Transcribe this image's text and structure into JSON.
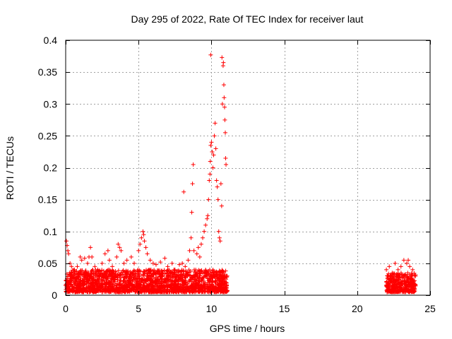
{
  "chart_data": {
    "type": "scatter",
    "title": "Day 295 of 2022, Rate Of TEC Index for receiver laut",
    "xlabel": "GPS time / hours",
    "ylabel": "ROTI / TECUs",
    "xlim": [
      0,
      25
    ],
    "ylim": [
      0,
      0.4
    ],
    "xticks": [
      0,
      5,
      10,
      15,
      20,
      25
    ],
    "yticks": [
      0,
      0.05,
      0.1,
      0.15,
      0.2,
      0.25,
      0.3,
      0.35,
      0.4
    ],
    "xtick_labels": [
      "0",
      "5",
      "10",
      "15",
      "20",
      "25"
    ],
    "ytick_labels": [
      "0",
      "0.05",
      "0.1",
      "0.15",
      "0.2",
      "0.25",
      "0.3",
      "0.35",
      "0.4"
    ],
    "grid": true,
    "marker": "+",
    "marker_color": "#ff0000",
    "series": [
      {
        "name": "ROTI",
        "points": [
          [
            0.05,
            0.085
          ],
          [
            0.1,
            0.078
          ],
          [
            0.15,
            0.07
          ],
          [
            0.2,
            0.065
          ],
          [
            0.3,
            0.05
          ],
          [
            0.4,
            0.045
          ],
          [
            0.6,
            0.04
          ],
          [
            0.8,
            0.045
          ],
          [
            1.0,
            0.06
          ],
          [
            1.1,
            0.055
          ],
          [
            1.3,
            0.058
          ],
          [
            1.5,
            0.05
          ],
          [
            1.6,
            0.06
          ],
          [
            1.7,
            0.075
          ],
          [
            1.8,
            0.06
          ],
          [
            2.0,
            0.045
          ],
          [
            2.2,
            0.04
          ],
          [
            2.5,
            0.05
          ],
          [
            2.7,
            0.065
          ],
          [
            2.9,
            0.07
          ],
          [
            3.0,
            0.055
          ],
          [
            3.2,
            0.045
          ],
          [
            3.5,
            0.06
          ],
          [
            3.6,
            0.08
          ],
          [
            3.7,
            0.075
          ],
          [
            3.8,
            0.07
          ],
          [
            4.0,
            0.05
          ],
          [
            4.2,
            0.055
          ],
          [
            4.5,
            0.06
          ],
          [
            4.7,
            0.05
          ],
          [
            5.0,
            0.07
          ],
          [
            5.1,
            0.08
          ],
          [
            5.2,
            0.09
          ],
          [
            5.3,
            0.1
          ],
          [
            5.35,
            0.095
          ],
          [
            5.4,
            0.085
          ],
          [
            5.5,
            0.075
          ],
          [
            5.6,
            0.065
          ],
          [
            5.8,
            0.055
          ],
          [
            6.0,
            0.05
          ],
          [
            6.2,
            0.048
          ],
          [
            6.5,
            0.052
          ],
          [
            6.8,
            0.058
          ],
          [
            7.0,
            0.045
          ],
          [
            7.3,
            0.05
          ],
          [
            7.5,
            0.04
          ],
          [
            7.8,
            0.048
          ],
          [
            8.0,
            0.05
          ],
          [
            8.2,
            0.045
          ],
          [
            8.4,
            0.055
          ],
          [
            8.5,
            0.07
          ],
          [
            8.6,
            0.09
          ],
          [
            8.65,
            0.13
          ],
          [
            8.7,
            0.175
          ],
          [
            8.75,
            0.205
          ],
          [
            8.8,
            0.07
          ],
          [
            9.0,
            0.065
          ],
          [
            9.1,
            0.075
          ],
          [
            9.2,
            0.06
          ],
          [
            9.3,
            0.08
          ],
          [
            9.4,
            0.09
          ],
          [
            9.5,
            0.1
          ],
          [
            9.6,
            0.11
          ],
          [
            9.7,
            0.12
          ],
          [
            9.75,
            0.125
          ],
          [
            9.8,
            0.15
          ],
          [
            9.85,
            0.18
          ],
          [
            9.9,
            0.19
          ],
          [
            9.92,
            0.21
          ],
          [
            9.95,
            0.235
          ],
          [
            10.0,
            0.24
          ],
          [
            10.05,
            0.225
          ],
          [
            10.1,
            0.2
          ],
          [
            10.15,
            0.22
          ],
          [
            10.2,
            0.25
          ],
          [
            10.25,
            0.27
          ],
          [
            10.3,
            0.23
          ],
          [
            10.35,
            0.18
          ],
          [
            10.4,
            0.17
          ],
          [
            10.45,
            0.15
          ],
          [
            10.5,
            0.1
          ],
          [
            10.55,
            0.09
          ],
          [
            10.6,
            0.085
          ],
          [
            10.65,
            0.175
          ],
          [
            10.7,
            0.14
          ],
          [
            10.72,
            0.373
          ],
          [
            10.75,
            0.3
          ],
          [
            10.8,
            0.36
          ],
          [
            10.82,
            0.365
          ],
          [
            10.85,
            0.33
          ],
          [
            10.87,
            0.31
          ],
          [
            10.9,
            0.295
          ],
          [
            10.92,
            0.275
          ],
          [
            10.95,
            0.255
          ],
          [
            10.97,
            0.215
          ],
          [
            11.0,
            0.205
          ],
          [
            9.95,
            0.377
          ],
          [
            8.1,
            0.162
          ],
          [
            11.0,
            0.02
          ],
          [
            11.05,
            0.015
          ],
          [
            22.0,
            0.04
          ],
          [
            22.2,
            0.045
          ],
          [
            22.4,
            0.035
          ],
          [
            22.6,
            0.05
          ],
          [
            22.8,
            0.04
          ],
          [
            23.0,
            0.045
          ],
          [
            23.2,
            0.055
          ],
          [
            23.4,
            0.05
          ],
          [
            23.5,
            0.055
          ],
          [
            23.6,
            0.045
          ],
          [
            23.8,
            0.04
          ],
          [
            24.0,
            0.03
          ]
        ]
      }
    ],
    "dense_bands": [
      {
        "x_start": 0.0,
        "x_end": 11.1,
        "y_min": 0.005,
        "y_max": 0.04
      },
      {
        "x_start": 22.0,
        "x_end": 24.0,
        "y_min": 0.005,
        "y_max": 0.035
      }
    ]
  }
}
